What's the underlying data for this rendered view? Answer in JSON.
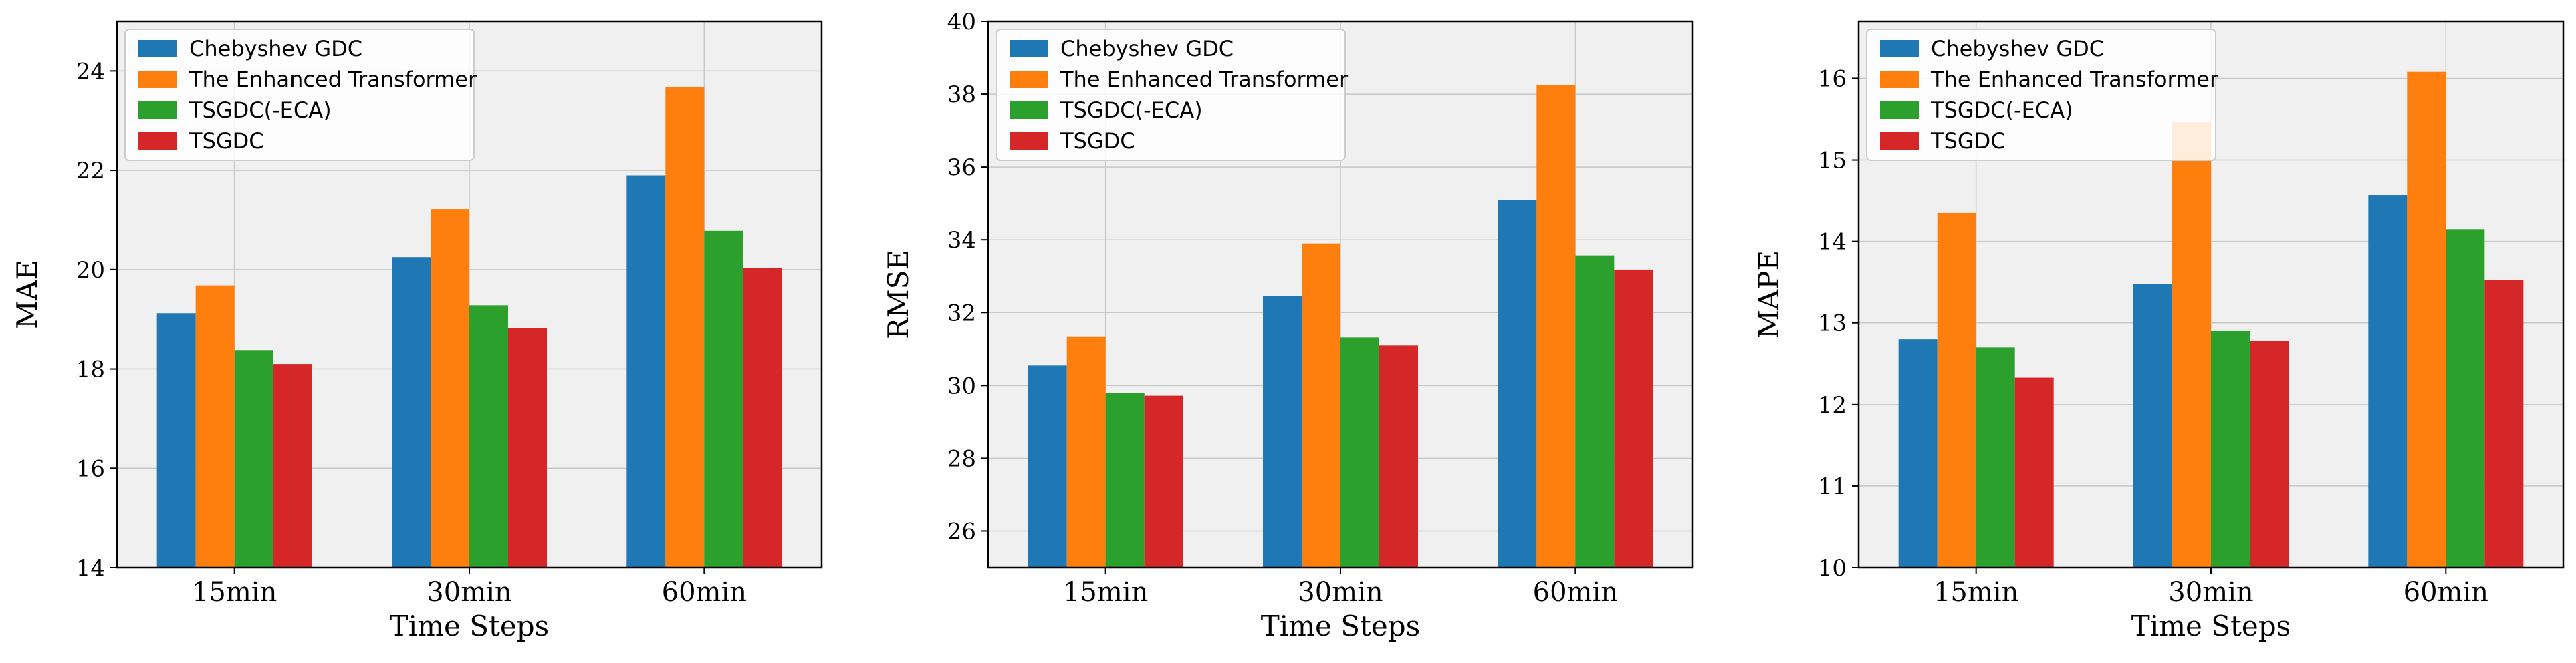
{
  "chart_data": [
    {
      "type": "bar",
      "title": "",
      "xlabel": "Time Steps",
      "ylabel": "MAE",
      "categories": [
        "15min",
        "30min",
        "60min"
      ],
      "ylim": [
        14,
        25
      ],
      "yticks": [
        14,
        16,
        18,
        20,
        22,
        24
      ],
      "grid": true,
      "legend": "top-left",
      "series": [
        {
          "name": "Chebyshev GDC",
          "color": "#1f77b4",
          "values": [
            19.12,
            20.25,
            21.9
          ]
        },
        {
          "name": "The Enhanced Transformer",
          "color": "#ff7f0e",
          "values": [
            19.68,
            21.22,
            23.68
          ]
        },
        {
          "name": "TSGDC(-ECA)",
          "color": "#2ca02c",
          "values": [
            18.38,
            19.28,
            20.78
          ]
        },
        {
          "name": "TSGDC",
          "color": "#d62728",
          "values": [
            18.1,
            18.82,
            20.03
          ]
        }
      ]
    },
    {
      "type": "bar",
      "title": "",
      "xlabel": "Time Steps",
      "ylabel": "RMSE",
      "categories": [
        "15min",
        "30min",
        "60min"
      ],
      "ylim": [
        25,
        40
      ],
      "yticks": [
        26,
        28,
        30,
        32,
        34,
        36,
        38,
        40
      ],
      "grid": true,
      "legend": "top-left",
      "series": [
        {
          "name": "Chebyshev GDC",
          "color": "#1f77b4",
          "values": [
            30.55,
            32.45,
            35.1
          ]
        },
        {
          "name": "The Enhanced Transformer",
          "color": "#ff7f0e",
          "values": [
            31.35,
            33.9,
            38.25
          ]
        },
        {
          "name": "TSGDC(-ECA)",
          "color": "#2ca02c",
          "values": [
            29.8,
            31.32,
            33.57
          ]
        },
        {
          "name": "TSGDC",
          "color": "#d62728",
          "values": [
            29.72,
            31.1,
            33.18
          ]
        }
      ]
    },
    {
      "type": "bar",
      "title": "",
      "xlabel": "Time Steps",
      "ylabel": "MAPE",
      "categories": [
        "15min",
        "30min",
        "60min"
      ],
      "ylim": [
        10,
        16.7
      ],
      "yticks": [
        10,
        11,
        12,
        13,
        14,
        15,
        16
      ],
      "grid": true,
      "legend": "top-left",
      "series": [
        {
          "name": "Chebyshev GDC",
          "color": "#1f77b4",
          "values": [
            12.8,
            13.48,
            14.57
          ]
        },
        {
          "name": "The Enhanced Transformer",
          "color": "#ff7f0e",
          "values": [
            14.35,
            15.47,
            16.08
          ]
        },
        {
          "name": "TSGDC(-ECA)",
          "color": "#2ca02c",
          "values": [
            12.7,
            12.9,
            14.15
          ]
        },
        {
          "name": "TSGDC",
          "color": "#d62728",
          "values": [
            12.33,
            12.78,
            13.53
          ]
        }
      ]
    }
  ]
}
